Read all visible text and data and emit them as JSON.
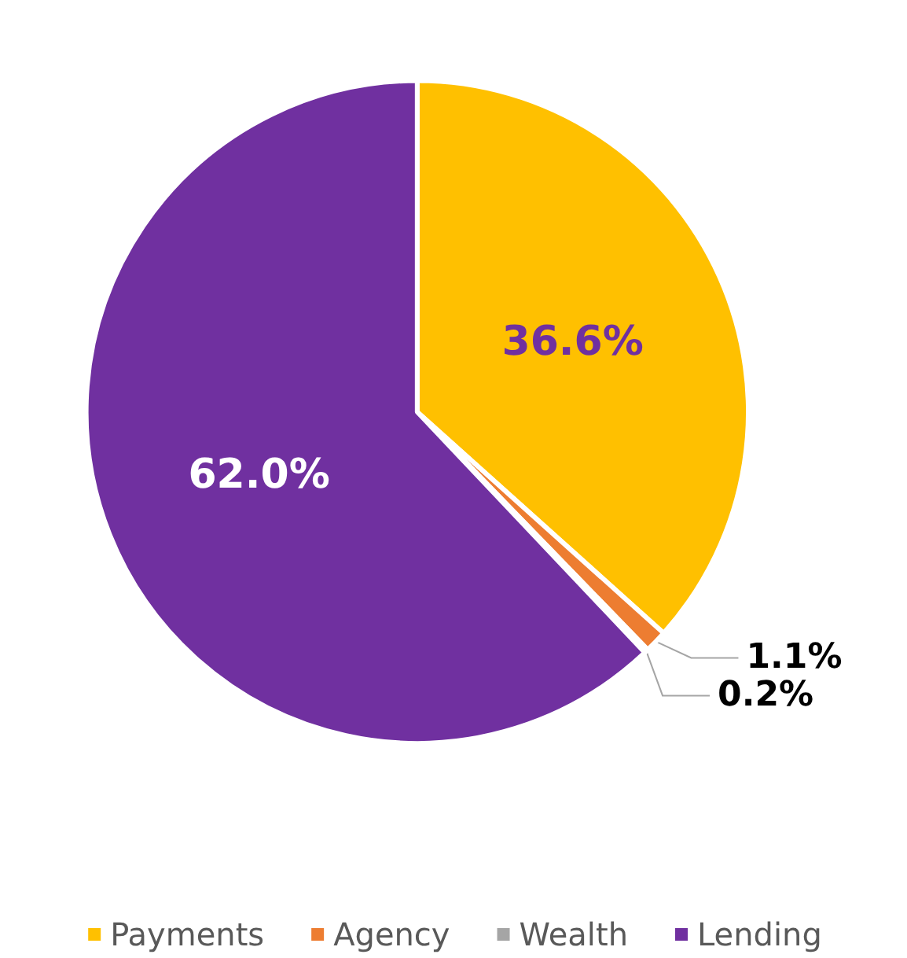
{
  "chart_data": {
    "type": "pie",
    "categories": [
      "Payments",
      "Agency",
      "Wealth",
      "Lending"
    ],
    "values": [
      36.6,
      1.1,
      0.2,
      62.0
    ],
    "colors": [
      "#ffc000",
      "#ed7d31",
      "#a5a5a5",
      "#7030a0"
    ],
    "value_labels": [
      "36.6%",
      "1.1%",
      "0.2%",
      "62.0%"
    ],
    "legend": "bottom"
  }
}
